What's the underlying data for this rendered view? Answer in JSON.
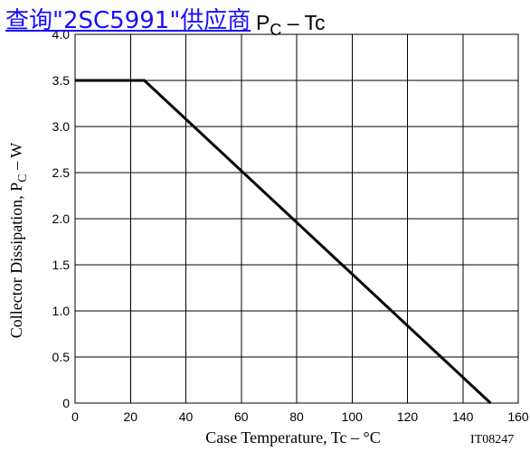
{
  "link": {
    "text": "查询\"2SC5991\"供应商"
  },
  "chart_data": {
    "type": "line",
    "title": "P",
    "title_subscript": "C",
    "title_suffix": " – Tc",
    "xlabel": "Case Temperature, Tc  –  °C",
    "ylabel": "Collector Dissipation, P",
    "ylabel_subscript": "C",
    "ylabel_suffix": " – W",
    "x_ticks": [
      "0",
      "20",
      "40",
      "60",
      "80",
      "100",
      "120",
      "140",
      "160"
    ],
    "y_ticks": [
      "0",
      "0.5",
      "1.0",
      "1.5",
      "2.0",
      "2.5",
      "3.0",
      "3.5",
      "4.0"
    ],
    "xlim": [
      0,
      160
    ],
    "ylim": [
      0,
      4.0
    ],
    "grid": true,
    "series": [
      {
        "x": [
          0,
          25,
          150
        ],
        "y": [
          3.5,
          3.5,
          0
        ],
        "color": "#000000"
      }
    ],
    "annotation": "IT08247"
  }
}
